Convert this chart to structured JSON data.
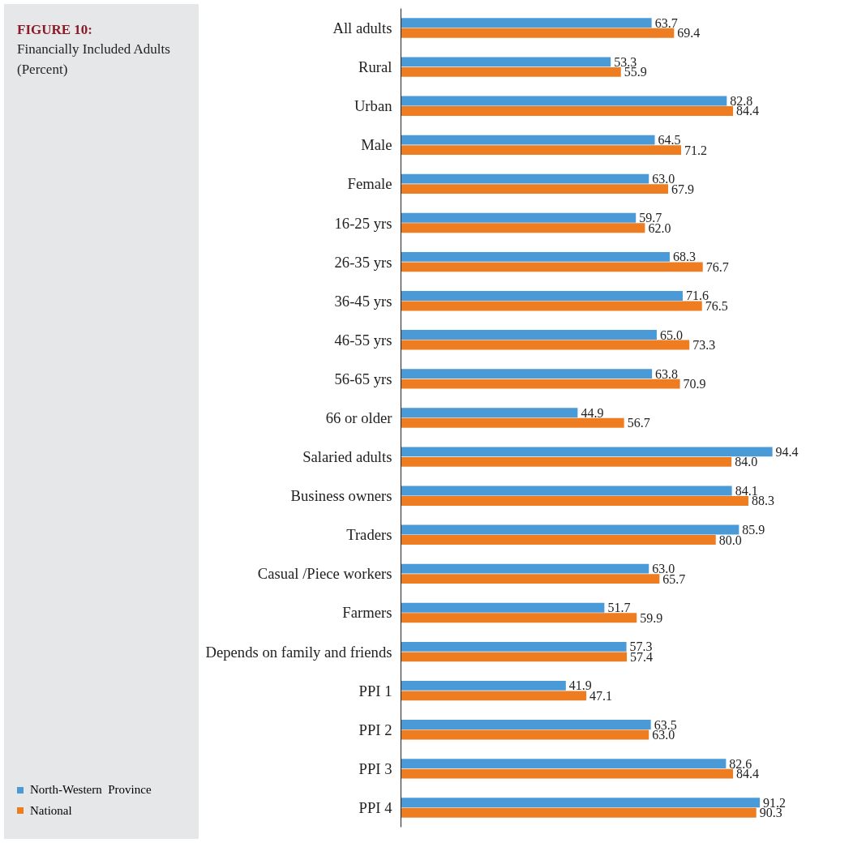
{
  "chart_data": {
    "type": "bar",
    "orientation": "horizontal",
    "title": "FIGURE 10:",
    "subtitle": "Financially Included Adults (Percent)",
    "categories": [
      "All adults",
      "Rural",
      "Urban",
      "Male",
      "Female",
      "16-25 yrs",
      "26-35 yrs",
      "36-45 yrs",
      "46-55 yrs",
      "56-65 yrs",
      "66 or older",
      "Salaried adults",
      "Business owners",
      "Traders",
      "Casual /Piece workers",
      "Farmers",
      "Depends on family and friends",
      "PPI 1",
      "PPI 2",
      "PPI 3",
      "PPI 4"
    ],
    "series": [
      {
        "name": "North-Western  Province",
        "color": "#4a9ad8",
        "values": [
          63.7,
          53.3,
          82.8,
          64.5,
          63.0,
          59.7,
          68.3,
          71.6,
          65.0,
          63.8,
          44.9,
          94.4,
          84.1,
          85.9,
          63.0,
          51.7,
          57.3,
          41.9,
          63.5,
          82.6,
          91.2
        ],
        "value_labels": [
          "63.7",
          "53.3",
          "82.8",
          "64.5",
          "63.0",
          "59.7",
          "68.3",
          "71.6",
          "65.0",
          "63.8",
          "44.9",
          "94.4",
          "84.1",
          "85.9",
          "63.0",
          "51.7",
          "57.3",
          "41.9",
          "63.5",
          "82.6",
          "91.2"
        ]
      },
      {
        "name": "National",
        "color": "#ee7d22",
        "values": [
          69.4,
          55.9,
          84.4,
          71.2,
          67.9,
          62.0,
          76.7,
          76.5,
          73.3,
          70.9,
          56.7,
          84.0,
          88.3,
          80.0,
          65.7,
          59.9,
          57.4,
          47.1,
          63.0,
          84.4,
          90.3
        ],
        "value_labels": [
          "69.4",
          "55.9",
          "84.4",
          "71.2",
          "67.9",
          "62.0",
          "76.7",
          "76.5",
          "73.3",
          "70.9",
          "56.7",
          "84.0",
          "88.3",
          "80.0",
          "65.7",
          "59.9",
          "57.4",
          "47.1",
          "63.0",
          "84.4",
          "90.3"
        ]
      }
    ],
    "legend": "bottom left",
    "grid": false,
    "tick_labels": "y"
  }
}
